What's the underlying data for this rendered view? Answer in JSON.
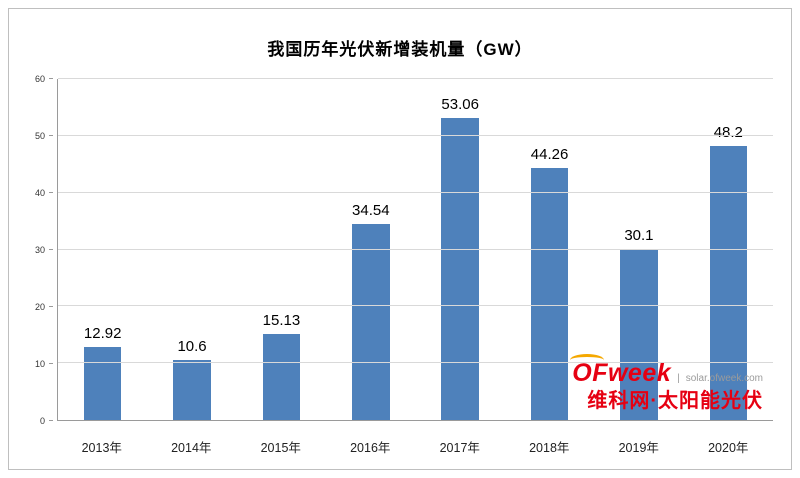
{
  "title": "我国历年光伏新增装机量（GW）",
  "chart_data": {
    "type": "bar",
    "title": "我国历年光伏新增装机量（GW）",
    "categories": [
      "2013年",
      "2014年",
      "2015年",
      "2016年",
      "2017年",
      "2018年",
      "2019年",
      "2020年"
    ],
    "values": [
      12.92,
      10.6,
      15.13,
      34.54,
      53.06,
      44.26,
      30.1,
      48.2
    ],
    "value_labels": [
      "12.92",
      "10.6",
      "15.13",
      "34.54",
      "53.06",
      "44.26",
      "30.1",
      "48.2"
    ],
    "xlabel": "",
    "ylabel": "",
    "ylim": [
      0,
      60
    ],
    "yticks": [
      0,
      10,
      20,
      30,
      40,
      50,
      60
    ],
    "grid": true,
    "legend": "none",
    "bar_color": "#4e81bb",
    "gridline_color": "#d9d9d9"
  },
  "watermark": {
    "brand": "OFweek",
    "divider": "|",
    "site": "solar.ofweek.com",
    "tagline": "维科网·太阳能光伏",
    "brand_color": "#e60012",
    "accent_color": "#f5a800"
  }
}
